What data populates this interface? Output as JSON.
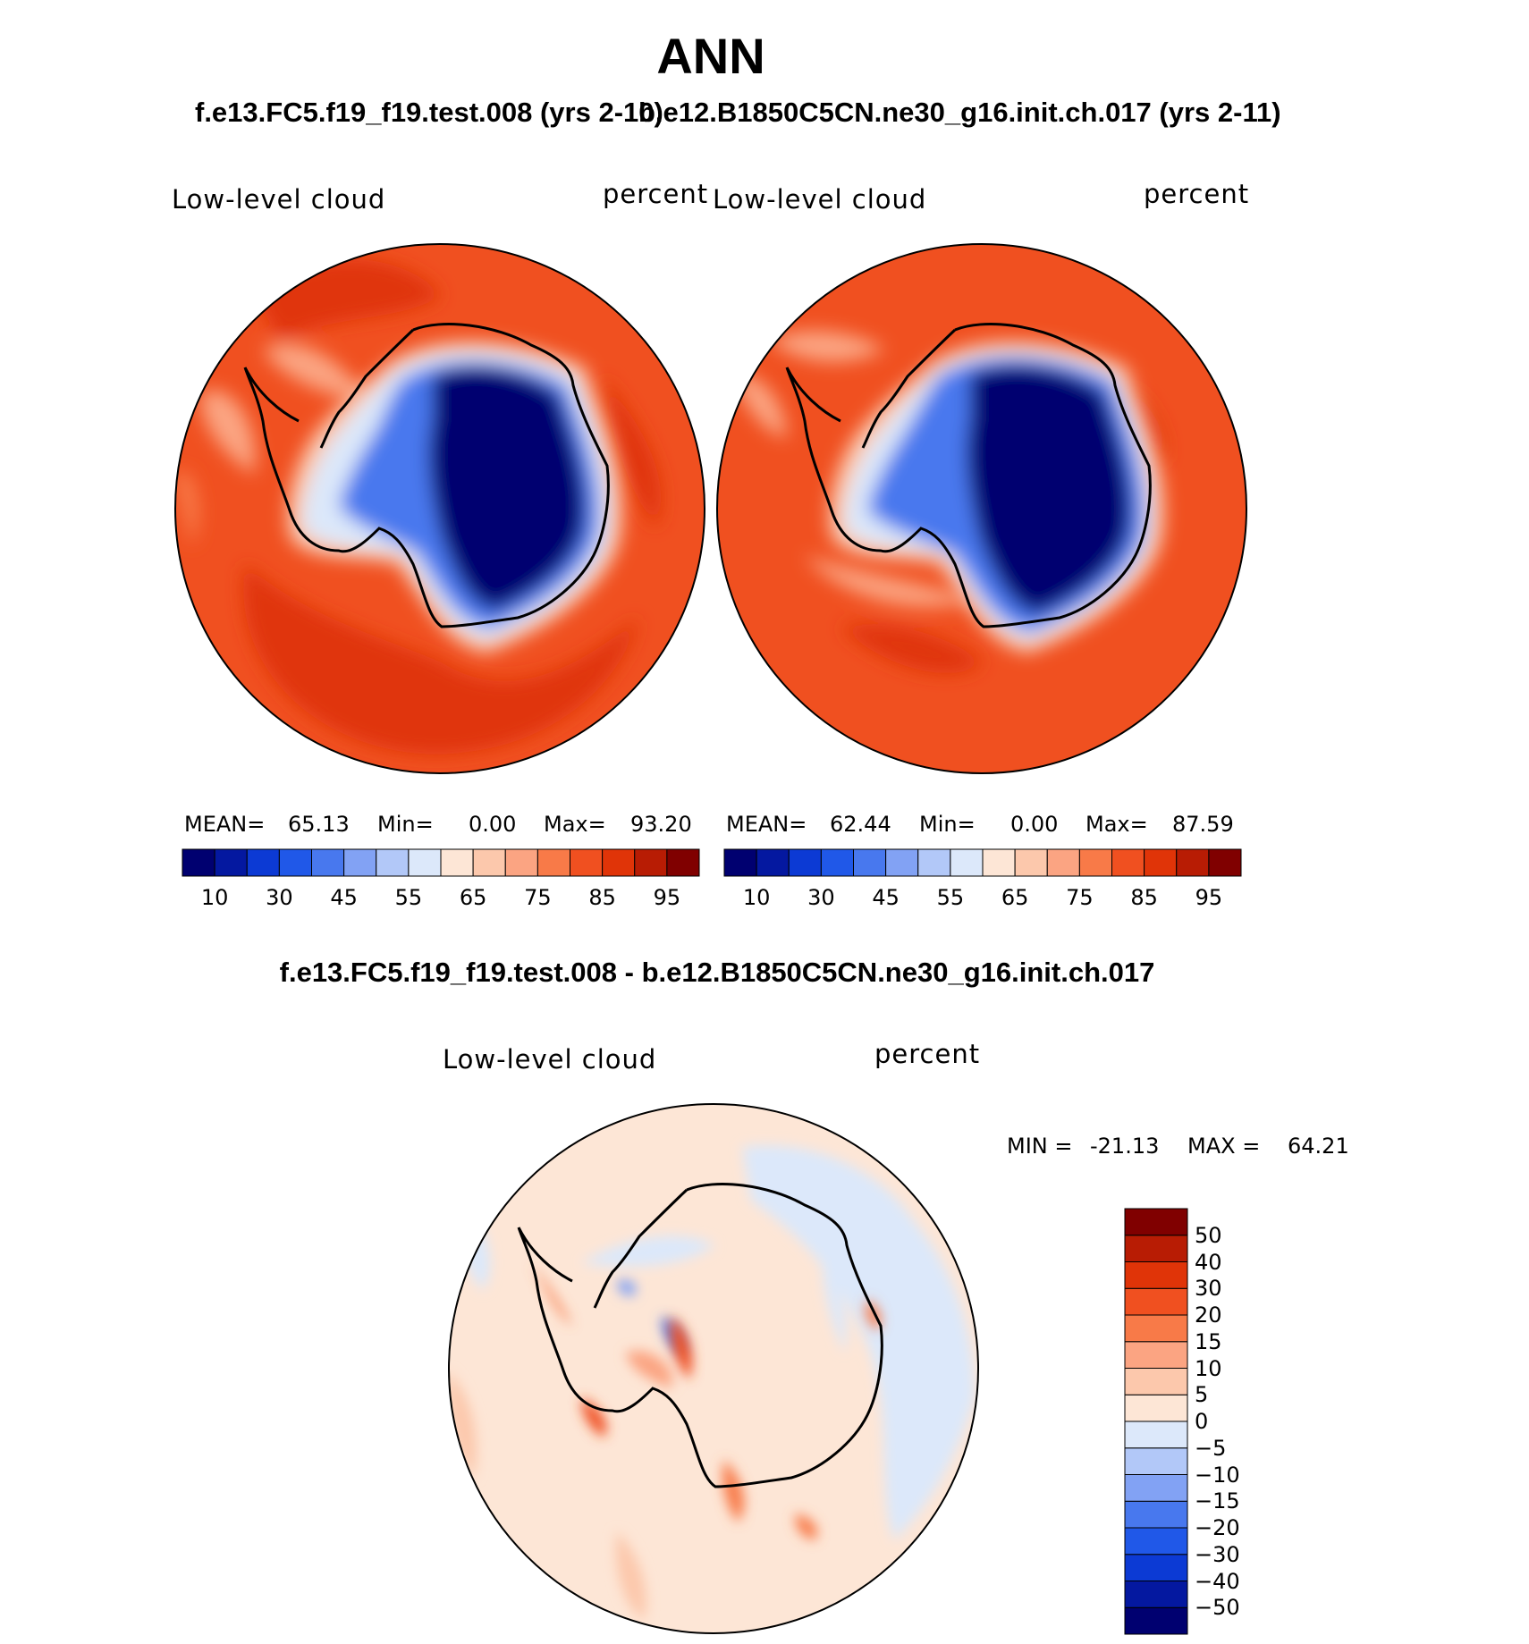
{
  "header": {
    "title": "ANN",
    "case_left": "f.e13.FC5.f19_f19.test.008 (yrs 2-10)",
    "case_right": "b.e12.B1850C5CN.ne30_g16.init.ch.017 (yrs 2-11)"
  },
  "panels": [
    {
      "variable": "Low-level cloud",
      "units": "percent",
      "stats": {
        "mean_label": "MEAN=",
        "mean": "65.13",
        "min_label": "Min=",
        "min": "0.00",
        "max_label": "Max=",
        "max": "93.20"
      }
    },
    {
      "variable": "Low-level cloud",
      "units": "percent",
      "stats": {
        "mean_label": "MEAN=",
        "mean": "62.44",
        "min_label": "Min=",
        "min": "0.00",
        "max_label": "Max=",
        "max": "87.59"
      }
    }
  ],
  "colorbar": {
    "colors": [
      "#000070",
      "#0418a0",
      "#0c3ad4",
      "#2058e8",
      "#4878ee",
      "#82a2f4",
      "#b2c8f8",
      "#dce8fa",
      "#fde6d6",
      "#fcc8ac",
      "#fba482",
      "#f87a48",
      "#f05020",
      "#e03408",
      "#b81c04",
      "#800000"
    ],
    "tick_labels": [
      "10",
      "30",
      "45",
      "55",
      "65",
      "75",
      "85",
      "95"
    ]
  },
  "difference": {
    "title": "f.e13.FC5.f19_f19.test.008 - b.e12.B1850C5CN.ne30_g16.init.ch.017",
    "variable": "Low-level cloud",
    "units": "percent",
    "min_label": "MIN =",
    "min": "-21.13",
    "max_label": "MAX =",
    "max": "64.21",
    "colors": [
      "#000070",
      "#0418a0",
      "#0c3ad4",
      "#2058e8",
      "#4878ee",
      "#82a2f4",
      "#b2c8f8",
      "#dce8fa",
      "#fde6d6",
      "#fcc8ac",
      "#fba482",
      "#f87a48",
      "#f05020",
      "#e03408",
      "#b81c04",
      "#800000"
    ],
    "tick_labels": [
      "−50",
      "−40",
      "−30",
      "−20",
      "−15",
      "−10",
      "−5",
      "0",
      "5",
      "10",
      "15",
      "20",
      "30",
      "40",
      "50"
    ]
  }
}
